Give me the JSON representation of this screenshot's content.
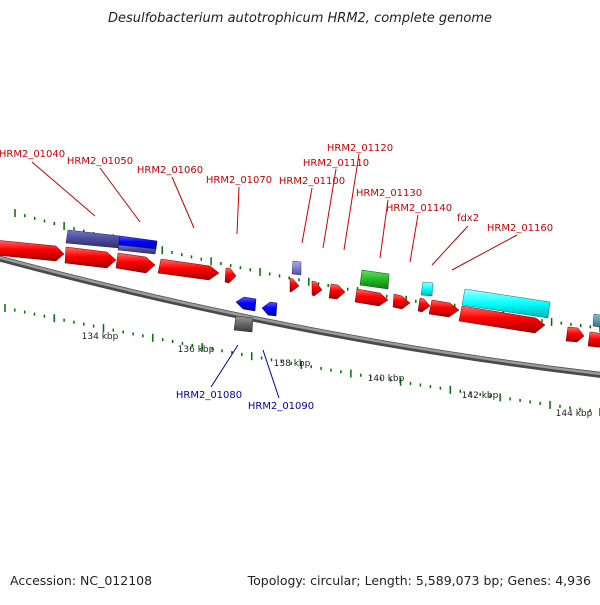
{
  "title": "Desulfobacterium autotrophicum HRM2, complete genome",
  "footer": {
    "accession": "Accession: NC_012108",
    "summary": "Topology: circular; Length: 5,589,073 bp; Genes: 4,936"
  },
  "colors": {
    "forward_gene": "#ff0000",
    "reverse_gene": "#0000ff",
    "backbone": "#888888",
    "tick": "#007000",
    "forward_label": "#cc0000",
    "reverse_label": "#0000aa"
  },
  "scale": {
    "unit": "kbp",
    "labels": [
      "134 kbp",
      "136 kbp",
      "138 kbp",
      "140 kbp",
      "142 kbp",
      "144 kbp"
    ]
  },
  "gene_labels": {
    "forward": [
      "HRM2_01040",
      "HRM2_01050",
      "HRM2_01060",
      "HRM2_01070",
      "HRM2_01100",
      "HRM2_01110",
      "HRM2_01120",
      "HRM2_01130",
      "HRM2_01140",
      "fdx2",
      "HRM2_01160"
    ],
    "reverse": [
      "HRM2_01080",
      "HRM2_01090"
    ]
  },
  "feature_colors": {
    "red": "#ff0000",
    "blue": "#0000ff",
    "purple": "#4b4b9c",
    "lavender": "#7f7fd0",
    "green": "#22bb22",
    "cyan": "#00ffff",
    "gray": "#666666",
    "steel": "#5599aa"
  }
}
